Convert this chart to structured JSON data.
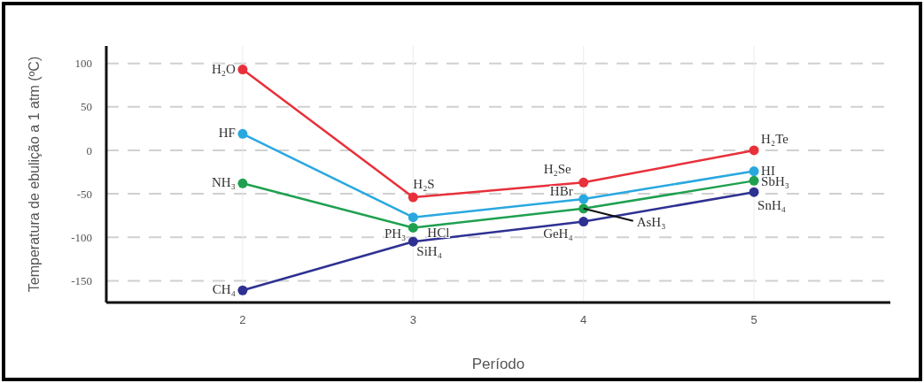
{
  "chart_data": {
    "type": "line",
    "xlabel": "Período",
    "ylabel": "Temperatura de ebulição a 1 atm (ºC)",
    "x": [
      2,
      3,
      4,
      5
    ],
    "series": [
      {
        "color": "#e8303a",
        "values": [
          93,
          -54,
          -37,
          0
        ]
      },
      {
        "color": "#29a8e0",
        "values": [
          19,
          -77,
          -56,
          -24
        ]
      },
      {
        "color": "#1fa050",
        "values": [
          -38,
          -89,
          -67,
          -35
        ]
      },
      {
        "color": "#2e3192",
        "values": [
          -161,
          -105,
          -82,
          -48
        ]
      }
    ],
    "xlim": [
      1.2,
      5.8
    ],
    "xticks": [
      2,
      3,
      4,
      5
    ],
    "ylim": [
      -175,
      120
    ],
    "yticks": [
      -150,
      -100,
      -50,
      0,
      50,
      100
    ],
    "grid": true,
    "marker": "circle",
    "line_style": "solid",
    "annotations": [
      {
        "text": "H₂O",
        "x": 2,
        "y": 93
      },
      {
        "text": "H₂S",
        "x": 3,
        "y": -54
      },
      {
        "text": "H₂Se",
        "x": 4,
        "y": -37
      },
      {
        "text": "H₂Te",
        "x": 5,
        "y": 0
      },
      {
        "text": "HF",
        "x": 2,
        "y": 19
      },
      {
        "text": "HCl",
        "x": 3,
        "y": -77
      },
      {
        "text": "HBr",
        "x": 4,
        "y": -56
      },
      {
        "text": "HI",
        "x": 5,
        "y": -24
      },
      {
        "text": "NH₃",
        "x": 2,
        "y": -38
      },
      {
        "text": "PH₃",
        "x": 3,
        "y": -89
      },
      {
        "text": "AsH₃",
        "x": 4,
        "y": -67
      },
      {
        "text": "SbH₃",
        "x": 5,
        "y": -35
      },
      {
        "text": "CH₄",
        "x": 2,
        "y": -161
      },
      {
        "text": "SiH₄",
        "x": 3,
        "y": -105
      },
      {
        "text": "GeH₄",
        "x": 4,
        "y": -82
      },
      {
        "text": "SnH₄",
        "x": 5,
        "y": -48
      }
    ]
  }
}
